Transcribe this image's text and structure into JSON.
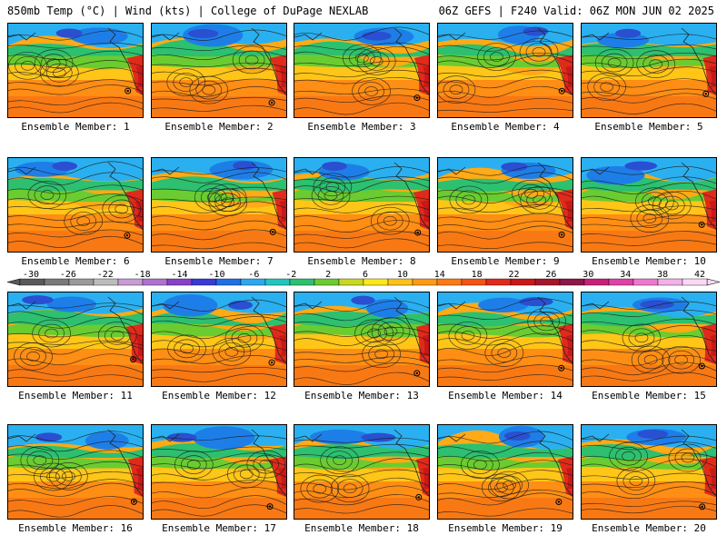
{
  "header": {
    "title_left": "850mb Temp (°C) | Wind (kts) | College of DuPage NEXLAB",
    "title_right": "06Z GEFS | F240 Valid: 06Z MON JUN 02 2025"
  },
  "panels": [
    {
      "caption": "Ensemble Member: 1"
    },
    {
      "caption": "Ensemble Member: 2"
    },
    {
      "caption": "Ensemble Member: 3"
    },
    {
      "caption": "Ensemble Member: 4"
    },
    {
      "caption": "Ensemble Member: 5"
    },
    {
      "caption": "Ensemble Member: 6"
    },
    {
      "caption": "Ensemble Member: 7"
    },
    {
      "caption": "Ensemble Member: 8"
    },
    {
      "caption": "Ensemble Member: 9"
    },
    {
      "caption": "Ensemble Member: 10"
    },
    {
      "caption": "Ensemble Member: 11"
    },
    {
      "caption": "Ensemble Member: 12"
    },
    {
      "caption": "Ensemble Member: 13"
    },
    {
      "caption": "Ensemble Member: 14"
    },
    {
      "caption": "Ensemble Member: 15"
    },
    {
      "caption": "Ensemble Member: 16"
    },
    {
      "caption": "Ensemble Member: 17"
    },
    {
      "caption": "Ensemble Member: 18"
    },
    {
      "caption": "Ensemble Member: 19"
    },
    {
      "caption": "Ensemble Member: 20"
    }
  ],
  "colorbar": {
    "labels": [
      "-30",
      "-26",
      "-22",
      "-18",
      "-14",
      "-10",
      "-6",
      "-2",
      "2",
      "6",
      "10",
      "14",
      "18",
      "22",
      "26",
      "30",
      "34",
      "38",
      "42"
    ],
    "colors": [
      "#5a5a5a",
      "#7a7a7a",
      "#9a9a9a",
      "#bcbcbc",
      "#c89bd6",
      "#b070d0",
      "#8a40c8",
      "#3a3ad8",
      "#1f6fe8",
      "#2aa8f0",
      "#22c6c0",
      "#2cc070",
      "#6acc30",
      "#c8d820",
      "#ffe81a",
      "#ffc21a",
      "#ff9a14",
      "#ff7a12",
      "#f25414",
      "#e02a1a",
      "#c81818",
      "#a81428",
      "#8e1648",
      "#c8207a",
      "#e040a8",
      "#ee78d0",
      "#f4b0e8",
      "#fad8f4"
    ],
    "palette": {
      "cold": [
        "#2a4fd0",
        "#1e7ee8",
        "#2ab0f0",
        "#28c8c0"
      ],
      "mid": [
        "#2cc070",
        "#6acc30",
        "#b8d820"
      ],
      "warm": [
        "#ffd21a",
        "#ffaa16",
        "#ff8a14",
        "#f26414"
      ],
      "hot": [
        "#e02a1a",
        "#c81818"
      ]
    }
  }
}
